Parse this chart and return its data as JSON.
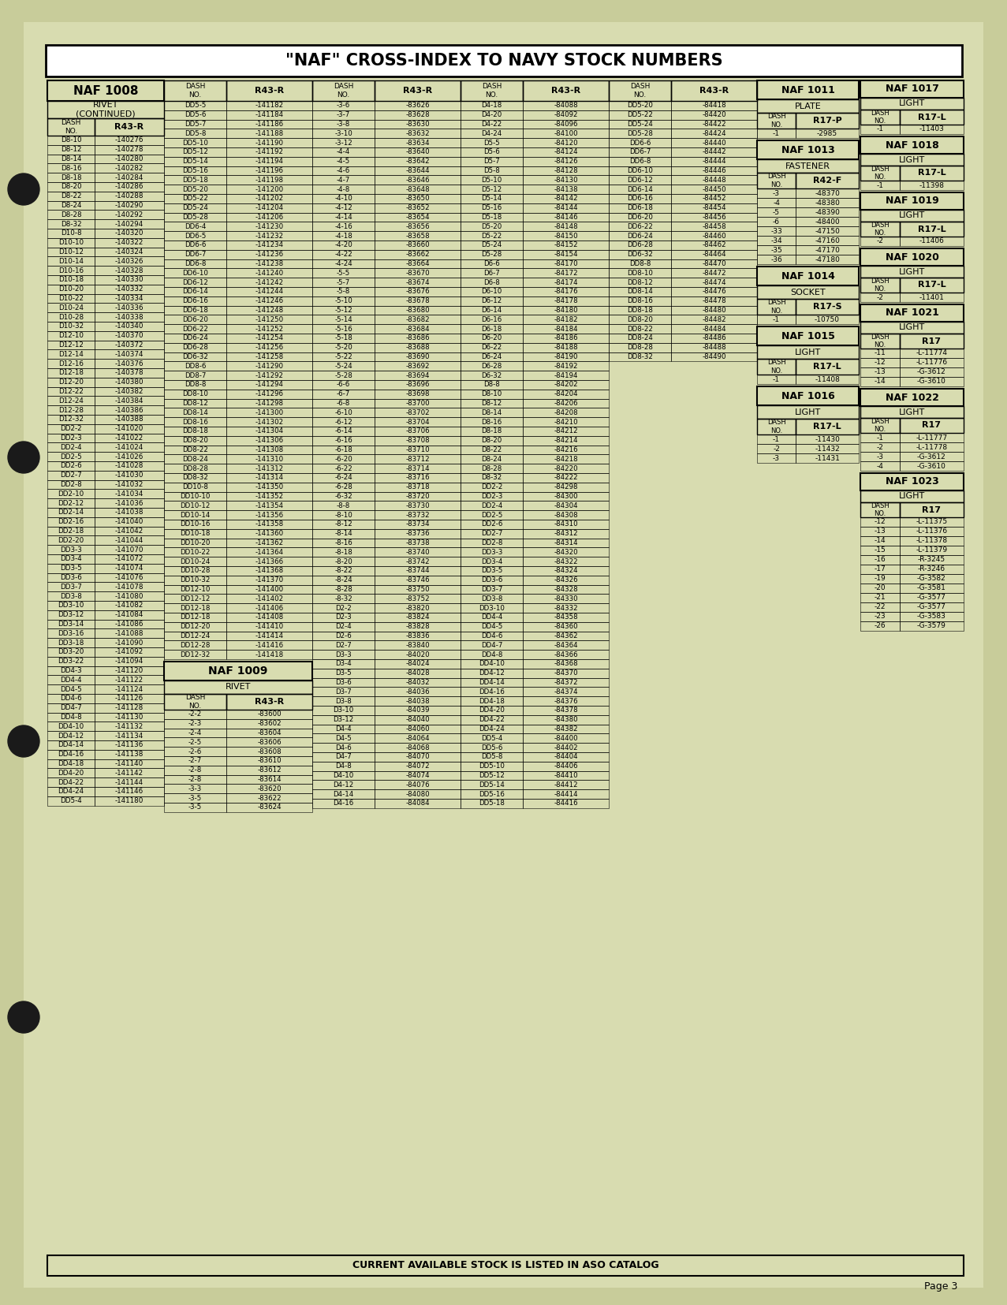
{
  "bg_color": "#c8cc9a",
  "paper_color": "#d8dcb0",
  "title": "\"NAF\" CROSS-INDEX TO NAVY STOCK NUMBERS",
  "footer": "CURRENT AVAILABLE STOCK IS LISTED IN ASO CATALOG",
  "page_num": "Page 3",
  "col1_header": "NAF 1008",
  "col1_sub": "RIVET\n(CONTINUED)",
  "col1_data": [
    [
      "D8-10",
      "-140276"
    ],
    [
      "D8-12",
      "-140278"
    ],
    [
      "D8-14",
      "-140280"
    ],
    [
      "D8-16",
      "-140282"
    ],
    [
      "D8-18",
      "-140284"
    ],
    [
      "D8-20",
      "-140286"
    ],
    [
      "D8-22",
      "-140288"
    ],
    [
      "D8-24",
      "-140290"
    ],
    [
      "D8-28",
      "-140292"
    ],
    [
      "D8-32",
      "-140294"
    ],
    [
      "D10-8",
      "-140320"
    ],
    [
      "D10-10",
      "-140322"
    ],
    [
      "D10-12",
      "-140324"
    ],
    [
      "D10-14",
      "-140326"
    ],
    [
      "D10-16",
      "-140328"
    ],
    [
      "D10-18",
      "-140330"
    ],
    [
      "D10-20",
      "-140332"
    ],
    [
      "D10-22",
      "-140334"
    ],
    [
      "D10-24",
      "-140336"
    ],
    [
      "D10-28",
      "-140338"
    ],
    [
      "D10-32",
      "-140340"
    ],
    [
      "D12-10",
      "-140370"
    ],
    [
      "D12-12",
      "-140372"
    ],
    [
      "D12-14",
      "-140374"
    ],
    [
      "D12-16",
      "-140376"
    ],
    [
      "D12-18",
      "-140378"
    ],
    [
      "D12-20",
      "-140380"
    ],
    [
      "D12-22",
      "-140382"
    ],
    [
      "D12-24",
      "-140384"
    ],
    [
      "D12-28",
      "-140386"
    ],
    [
      "D12-32",
      "-140388"
    ],
    [
      "DD2-2",
      "-141020"
    ],
    [
      "DD2-3",
      "-141022"
    ],
    [
      "DD2-4",
      "-141024"
    ],
    [
      "DD2-5",
      "-141026"
    ],
    [
      "DD2-6",
      "-141028"
    ],
    [
      "DD2-7",
      "-141030"
    ],
    [
      "DD2-8",
      "-141032"
    ],
    [
      "DD2-10",
      "-141034"
    ],
    [
      "DD2-12",
      "-141036"
    ],
    [
      "DD2-14",
      "-141038"
    ],
    [
      "DD2-16",
      "-141040"
    ],
    [
      "DD2-18",
      "-141042"
    ],
    [
      "DD2-20",
      "-141044"
    ],
    [
      "DD3-3",
      "-141070"
    ],
    [
      "DD3-4",
      "-141072"
    ],
    [
      "DD3-5",
      "-141074"
    ],
    [
      "DD3-6",
      "-141076"
    ],
    [
      "DD3-7",
      "-141078"
    ],
    [
      "DD3-8",
      "-141080"
    ],
    [
      "DD3-10",
      "-141082"
    ],
    [
      "DD3-12",
      "-141084"
    ],
    [
      "DD3-14",
      "-141086"
    ],
    [
      "DD3-16",
      "-141088"
    ],
    [
      "DD3-18",
      "-141090"
    ],
    [
      "DD3-20",
      "-141092"
    ],
    [
      "DD3-22",
      "-141094"
    ],
    [
      "DD4-3",
      "-141120"
    ],
    [
      "DD4-4",
      "-141122"
    ],
    [
      "DD4-5",
      "-141124"
    ],
    [
      "DD4-6",
      "-141126"
    ],
    [
      "DD4-7",
      "-141128"
    ],
    [
      "DD4-8",
      "-141130"
    ],
    [
      "DD4-10",
      "-141132"
    ],
    [
      "DD4-12",
      "-141134"
    ],
    [
      "DD4-14",
      "-141136"
    ],
    [
      "DD4-16",
      "-141138"
    ],
    [
      "DD4-18",
      "-141140"
    ],
    [
      "DD4-20",
      "-141142"
    ],
    [
      "DD4-22",
      "-141144"
    ],
    [
      "DD4-24",
      "-141146"
    ],
    [
      "DD5-4",
      "-141180"
    ]
  ],
  "main_col1": [
    [
      "DD5-5",
      "-141182"
    ],
    [
      "DD5-6",
      "-141184"
    ],
    [
      "DD5-7",
      "-141186"
    ],
    [
      "DD5-8",
      "-141188"
    ],
    [
      "DD5-10",
      "-141190"
    ],
    [
      "DD5-12",
      "-141192"
    ],
    [
      "DD5-14",
      "-141194"
    ],
    [
      "DD5-16",
      "-141196"
    ],
    [
      "DD5-18",
      "-141198"
    ],
    [
      "DD5-20",
      "-141200"
    ],
    [
      "DD5-22",
      "-141202"
    ],
    [
      "DD5-24",
      "-141204"
    ],
    [
      "DD5-28",
      "-141206"
    ],
    [
      "DD6-4",
      "-141230"
    ],
    [
      "DD6-5",
      "-141232"
    ],
    [
      "DD6-6",
      "-141234"
    ],
    [
      "DD6-7",
      "-141236"
    ],
    [
      "DD6-8",
      "-141238"
    ],
    [
      "DD6-10",
      "-141240"
    ],
    [
      "DD6-12",
      "-141242"
    ],
    [
      "DD6-14",
      "-141244"
    ],
    [
      "DD6-16",
      "-141246"
    ],
    [
      "DD6-18",
      "-141248"
    ],
    [
      "DD6-20",
      "-141250"
    ],
    [
      "DD6-22",
      "-141252"
    ],
    [
      "DD6-24",
      "-141254"
    ],
    [
      "DD6-28",
      "-141256"
    ],
    [
      "DD6-32",
      "-141258"
    ],
    [
      "DD8-6",
      "-141290"
    ],
    [
      "DD8-7",
      "-141292"
    ],
    [
      "DD8-8",
      "-141294"
    ],
    [
      "DD8-10",
      "-141296"
    ],
    [
      "DD8-12",
      "-141298"
    ],
    [
      "DD8-14",
      "-141300"
    ],
    [
      "DD8-16",
      "-141302"
    ],
    [
      "DD8-18",
      "-141304"
    ],
    [
      "DD8-20",
      "-141306"
    ],
    [
      "DD8-22",
      "-141308"
    ],
    [
      "DD8-24",
      "-141310"
    ],
    [
      "DD8-28",
      "-141312"
    ],
    [
      "DD8-32",
      "-141314"
    ],
    [
      "DD10-8",
      "-141350"
    ],
    [
      "DD10-10",
      "-141352"
    ],
    [
      "DD10-12",
      "-141354"
    ],
    [
      "DD10-14",
      "-141356"
    ],
    [
      "DD10-16",
      "-141358"
    ],
    [
      "DD10-18",
      "-141360"
    ],
    [
      "DD10-20",
      "-141362"
    ],
    [
      "DD10-22",
      "-141364"
    ],
    [
      "DD10-24",
      "-141366"
    ],
    [
      "DD10-28",
      "-141368"
    ],
    [
      "DD10-32",
      "-141370"
    ],
    [
      "DD12-10",
      "-141400"
    ],
    [
      "DD12-12",
      "-141402"
    ],
    [
      "DD12-18",
      "-141406"
    ],
    [
      "DD12-18",
      "-141408"
    ],
    [
      "DD12-20",
      "-141410"
    ],
    [
      "DD12-24",
      "-141414"
    ],
    [
      "DD12-28",
      "-141416"
    ],
    [
      "DD12-32",
      "-141418"
    ]
  ],
  "main_col2": [
    [
      "-3-6",
      "-83626"
    ],
    [
      "-3-7",
      "-83628"
    ],
    [
      "-3-8",
      "-83630"
    ],
    [
      "-3-10",
      "-83632"
    ],
    [
      "-3-12",
      "-83634"
    ],
    [
      "-4-4",
      "-83640"
    ],
    [
      "-4-5",
      "-83642"
    ],
    [
      "-4-6",
      "-83644"
    ],
    [
      "-4-7",
      "-83646"
    ],
    [
      "-4-8",
      "-83648"
    ],
    [
      "-4-10",
      "-83650"
    ],
    [
      "-4-12",
      "-83652"
    ],
    [
      "-4-14",
      "-83654"
    ],
    [
      "-4-16",
      "-83656"
    ],
    [
      "-4-18",
      "-83658"
    ],
    [
      "-4-20",
      "-83660"
    ],
    [
      "-4-22",
      "-83662"
    ],
    [
      "-4-24",
      "-83664"
    ],
    [
      "-5-5",
      "-83670"
    ],
    [
      "-5-7",
      "-83674"
    ],
    [
      "-5-8",
      "-83676"
    ],
    [
      "-5-10",
      "-83678"
    ],
    [
      "-5-12",
      "-83680"
    ],
    [
      "-5-14",
      "-83682"
    ],
    [
      "-5-16",
      "-83684"
    ],
    [
      "-5-18",
      "-83686"
    ],
    [
      "-5-20",
      "-83688"
    ],
    [
      "-5-22",
      "-83690"
    ],
    [
      "-5-24",
      "-83692"
    ],
    [
      "-5-28",
      "-83694"
    ],
    [
      "-6-6",
      "-83696"
    ],
    [
      "-6-7",
      "-83698"
    ],
    [
      "-6-8",
      "-83700"
    ],
    [
      "-6-10",
      "-83702"
    ],
    [
      "-6-12",
      "-83704"
    ],
    [
      "-6-14",
      "-83706"
    ],
    [
      "-6-16",
      "-83708"
    ],
    [
      "-6-18",
      "-83710"
    ],
    [
      "-6-20",
      "-83712"
    ],
    [
      "-6-22",
      "-83714"
    ],
    [
      "-6-24",
      "-83716"
    ],
    [
      "-6-28",
      "-83718"
    ],
    [
      "-6-32",
      "-83720"
    ],
    [
      "-8-8",
      "-83730"
    ],
    [
      "-8-10",
      "-83732"
    ],
    [
      "-8-12",
      "-83734"
    ],
    [
      "-8-14",
      "-83736"
    ],
    [
      "-8-16",
      "-83738"
    ],
    [
      "-8-18",
      "-83740"
    ],
    [
      "-8-20",
      "-83742"
    ],
    [
      "-8-22",
      "-83744"
    ],
    [
      "-8-24",
      "-83746"
    ],
    [
      "-8-28",
      "-83750"
    ],
    [
      "-8-32",
      "-83752"
    ],
    [
      "D2-2",
      "-83820"
    ],
    [
      "D2-3",
      "-83824"
    ],
    [
      "D2-4",
      "-83828"
    ],
    [
      "D2-6",
      "-83836"
    ],
    [
      "D2-7",
      "-83840"
    ],
    [
      "D3-3",
      "-84020"
    ],
    [
      "D3-4",
      "-84024"
    ],
    [
      "D3-5",
      "-84028"
    ],
    [
      "D3-6",
      "-84032"
    ],
    [
      "D3-7",
      "-84036"
    ],
    [
      "D3-8",
      "-84038"
    ],
    [
      "D3-10",
      "-84039"
    ],
    [
      "D3-12",
      "-84040"
    ],
    [
      "D4-4",
      "-84060"
    ],
    [
      "D4-5",
      "-84064"
    ],
    [
      "D4-6",
      "-84068"
    ],
    [
      "D4-7",
      "-84070"
    ],
    [
      "D4-8",
      "-84072"
    ],
    [
      "D4-10",
      "-84074"
    ],
    [
      "D4-12",
      "-84076"
    ],
    [
      "D4-14",
      "-84080"
    ],
    [
      "D4-16",
      "-84084"
    ]
  ],
  "main_col3": [
    [
      "D4-18",
      "-84088"
    ],
    [
      "D4-20",
      "-84092"
    ],
    [
      "D4-22",
      "-84096"
    ],
    [
      "D4-24",
      "-84100"
    ],
    [
      "D5-5",
      "-84120"
    ],
    [
      "D5-6",
      "-84124"
    ],
    [
      "D5-7",
      "-84126"
    ],
    [
      "D5-8",
      "-84128"
    ],
    [
      "D5-10",
      "-84130"
    ],
    [
      "D5-12",
      "-84138"
    ],
    [
      "D5-14",
      "-84142"
    ],
    [
      "D5-16",
      "-84144"
    ],
    [
      "D5-18",
      "-84146"
    ],
    [
      "D5-20",
      "-84148"
    ],
    [
      "D5-22",
      "-84150"
    ],
    [
      "D5-24",
      "-84152"
    ],
    [
      "D5-28",
      "-84154"
    ],
    [
      "D6-6",
      "-84170"
    ],
    [
      "D6-7",
      "-84172"
    ],
    [
      "D6-8",
      "-84174"
    ],
    [
      "D6-10",
      "-84176"
    ],
    [
      "D6-12",
      "-84178"
    ],
    [
      "D6-14",
      "-84180"
    ],
    [
      "D6-16",
      "-84182"
    ],
    [
      "D6-18",
      "-84184"
    ],
    [
      "D6-20",
      "-84186"
    ],
    [
      "D6-22",
      "-84188"
    ],
    [
      "D6-24",
      "-84190"
    ],
    [
      "D6-28",
      "-84192"
    ],
    [
      "D6-32",
      "-84194"
    ],
    [
      "D8-8",
      "-84202"
    ],
    [
      "D8-10",
      "-84204"
    ],
    [
      "D8-12",
      "-84206"
    ],
    [
      "D8-14",
      "-84208"
    ],
    [
      "D8-16",
      "-84210"
    ],
    [
      "D8-18",
      "-84212"
    ],
    [
      "D8-20",
      "-84214"
    ],
    [
      "D8-22",
      "-84216"
    ],
    [
      "D8-24",
      "-84218"
    ],
    [
      "D8-28",
      "-84220"
    ],
    [
      "D8-32",
      "-84222"
    ],
    [
      "DD2-2",
      "-84298"
    ],
    [
      "DD2-3",
      "-84300"
    ],
    [
      "DD2-4",
      "-84304"
    ],
    [
      "DD2-5",
      "-84308"
    ],
    [
      "DD2-6",
      "-84310"
    ],
    [
      "DD2-7",
      "-84312"
    ],
    [
      "DD2-8",
      "-84314"
    ],
    [
      "DD3-3",
      "-84320"
    ],
    [
      "DD3-4",
      "-84322"
    ],
    [
      "DD3-5",
      "-84324"
    ],
    [
      "DD3-6",
      "-84326"
    ],
    [
      "DD3-7",
      "-84328"
    ],
    [
      "DD3-8",
      "-84330"
    ],
    [
      "DD3-10",
      "-84332"
    ],
    [
      "DD4-4",
      "-84358"
    ],
    [
      "DD4-5",
      "-84360"
    ],
    [
      "DD4-6",
      "-84362"
    ],
    [
      "DD4-7",
      "-84364"
    ],
    [
      "DD4-8",
      "-84366"
    ],
    [
      "DD4-10",
      "-84368"
    ],
    [
      "DD4-12",
      "-84370"
    ],
    [
      "DD4-14",
      "-84372"
    ],
    [
      "DD4-16",
      "-84374"
    ],
    [
      "DD4-18",
      "-84376"
    ],
    [
      "DD4-20",
      "-84378"
    ],
    [
      "DD4-22",
      "-84380"
    ],
    [
      "DD4-24",
      "-84382"
    ],
    [
      "DD5-4",
      "-84400"
    ],
    [
      "DD5-6",
      "-84402"
    ],
    [
      "DD5-8",
      "-84404"
    ],
    [
      "DD5-10",
      "-84406"
    ],
    [
      "DD5-12",
      "-84410"
    ],
    [
      "DD5-14",
      "-84412"
    ],
    [
      "DD5-16",
      "-84414"
    ],
    [
      "DD5-18",
      "-84416"
    ]
  ],
  "main_col4": [
    [
      "DD5-20",
      "-84418"
    ],
    [
      "DD5-22",
      "-84420"
    ],
    [
      "DD5-24",
      "-84422"
    ],
    [
      "DD5-28",
      "-84424"
    ],
    [
      "DD6-6",
      "-84440"
    ],
    [
      "DD6-7",
      "-84442"
    ],
    [
      "DD6-8",
      "-84444"
    ],
    [
      "DD6-10",
      "-84446"
    ],
    [
      "DD6-12",
      "-84448"
    ],
    [
      "DD6-14",
      "-84450"
    ],
    [
      "DD6-16",
      "-84452"
    ],
    [
      "DD6-18",
      "-84454"
    ],
    [
      "DD6-20",
      "-84456"
    ],
    [
      "DD6-22",
      "-84458"
    ],
    [
      "DD6-24",
      "-84460"
    ],
    [
      "DD6-28",
      "-84462"
    ],
    [
      "DD6-32",
      "-84464"
    ],
    [
      "DD8-8",
      "-84470"
    ],
    [
      "DD8-10",
      "-84472"
    ],
    [
      "DD8-12",
      "-84474"
    ],
    [
      "DD8-14",
      "-84476"
    ],
    [
      "DD8-16",
      "-84478"
    ],
    [
      "DD8-18",
      "-84480"
    ],
    [
      "DD8-20",
      "-84482"
    ],
    [
      "DD8-22",
      "-84484"
    ],
    [
      "DD8-24",
      "-84486"
    ],
    [
      "DD8-28",
      "-84488"
    ],
    [
      "DD8-32",
      "-84490"
    ]
  ],
  "naf1009_title": "NAF 1009",
  "naf1009_sub": "RIVET",
  "naf1009_data": [
    [
      "-2-2",
      "-83600"
    ],
    [
      "-2-3",
      "-83602"
    ],
    [
      "-2-4",
      "-83604"
    ],
    [
      "-2-5",
      "-83606"
    ],
    [
      "-2-6",
      "-83608"
    ],
    [
      "-2-7",
      "-83610"
    ],
    [
      "-2-8",
      "-83612"
    ],
    [
      "-2-8",
      "-83614"
    ],
    [
      "-3-3",
      "-83620"
    ],
    [
      "-3-5",
      "-83622"
    ],
    [
      "-3-5",
      "-83624"
    ]
  ],
  "naf1011": {
    "title": "NAF 1011",
    "subtitle": "PLATE",
    "col_hdr2": "R17-P",
    "data": [
      [
        "-1",
        "-2985"
      ]
    ]
  },
  "naf1013": {
    "title": "NAF 1013",
    "subtitle": "FASTENER",
    "col_hdr2": "R42-F",
    "data": [
      [
        "-3",
        "-48370"
      ],
      [
        "-4",
        "-48380"
      ],
      [
        "-5",
        "-48390"
      ],
      [
        "-6",
        "-48400"
      ],
      [
        "-33",
        "-47150"
      ],
      [
        "-34",
        "-47160"
      ],
      [
        "-35",
        "-47170"
      ],
      [
        "-36",
        "-47180"
      ]
    ]
  },
  "naf1014": {
    "title": "NAF 1014",
    "subtitle": "SOCKET",
    "col_hdr2": "R17-S",
    "data": [
      [
        "-1",
        "-10750"
      ]
    ]
  },
  "naf1015": {
    "title": "NAF 1015",
    "subtitle": "LIGHT",
    "col_hdr2": "R17-L",
    "data": [
      [
        "-1",
        "-11408"
      ]
    ]
  },
  "naf1016": {
    "title": "NAF 1016",
    "subtitle": "LIGHT",
    "col_hdr2": "R17-L",
    "data": [
      [
        "-1",
        "-11430"
      ],
      [
        "-2",
        "-11432"
      ],
      [
        "-3",
        "-11431"
      ]
    ]
  },
  "naf1017": {
    "title": "NAF 1017",
    "subtitle": "LIGHT",
    "col_hdr2": "R17-L",
    "data": [
      [
        "-1",
        "-11403"
      ]
    ]
  },
  "naf1018": {
    "title": "NAF 1018",
    "subtitle": "LIGHT",
    "col_hdr2": "R17-L",
    "data": [
      [
        "-1",
        "-11398"
      ]
    ]
  },
  "naf1019": {
    "title": "NAF 1019",
    "subtitle": "LIGHT",
    "col_hdr2": "R17-L",
    "data": [
      [
        "-2",
        "-11406"
      ]
    ]
  },
  "naf1020": {
    "title": "NAF 1020",
    "subtitle": "LIGHT",
    "col_hdr2": "R17-L",
    "data": [
      [
        "-2",
        "-11401"
      ]
    ]
  },
  "naf1021": {
    "title": "NAF 1021",
    "subtitle": "LIGHT",
    "col_hdr2": "R17",
    "data": [
      [
        "-11",
        "-L-11774"
      ],
      [
        "-12",
        "-L-11776"
      ],
      [
        "-13",
        "-G-3612"
      ],
      [
        "-14",
        "-G-3610"
      ]
    ]
  },
  "naf1022": {
    "title": "NAF 1022",
    "subtitle": "LIGHT",
    "col_hdr2": "R17",
    "data": [
      [
        "-1",
        "-L-11777"
      ],
      [
        "-2",
        "-L-11778"
      ],
      [
        "-3",
        "-G-3612"
      ],
      [
        "-4",
        "-G-3610"
      ]
    ]
  },
  "naf1023": {
    "title": "NAF 1023",
    "subtitle": "LIGHT",
    "col_hdr2": "R17",
    "data": [
      [
        "-12",
        "-L-11375"
      ],
      [
        "-13",
        "-L-11376"
      ],
      [
        "-14",
        "-L-11378"
      ],
      [
        "-15",
        "-L-11379"
      ],
      [
        "-16",
        "-R-3245"
      ],
      [
        "-17",
        "-R-3246"
      ],
      [
        "-19",
        "-G-3582"
      ],
      [
        "-20",
        "-G-3581"
      ],
      [
        "-21",
        "-G-3577"
      ],
      [
        "-22",
        "-G-3577"
      ],
      [
        "-23",
        "-G-3583"
      ],
      [
        "-26",
        "-G-3579"
      ]
    ]
  }
}
